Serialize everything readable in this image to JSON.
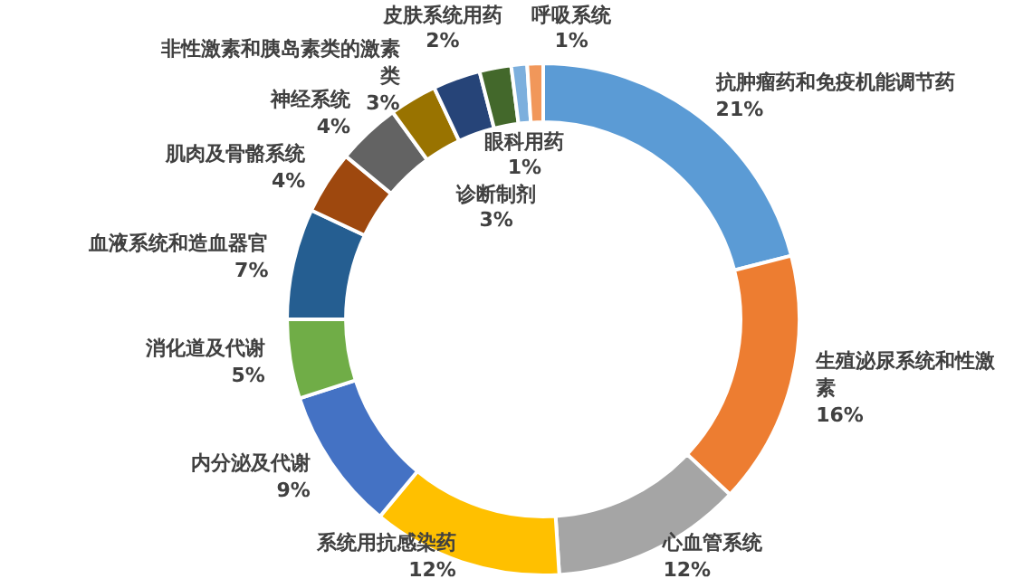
{
  "chart_data": {
    "type": "donut",
    "categories": [
      "抗肿瘤药和免疫机能调节药",
      "生殖泌尿系统和性激素",
      "心血管系统",
      "系统用抗感染药",
      "内分泌及代谢",
      "消化道及代谢",
      "血液系统和造血器官",
      "肌肉及骨骼系统",
      "神经系统",
      "非性激素和胰岛素类的激素类",
      "诊断制剂",
      "皮肤系统用药",
      "眼科用药",
      "呼吸系统"
    ],
    "values": [
      21,
      16,
      12,
      12,
      9,
      5,
      7,
      4,
      4,
      3,
      3,
      2,
      1,
      1
    ],
    "value_labels": [
      "21%",
      "16%",
      "12%",
      "12%",
      "9%",
      "5%",
      "7%",
      "4%",
      "4%",
      "3%",
      "3%",
      "2%",
      "1%",
      "1%"
    ],
    "colors": [
      "#5b9bd5",
      "#ed7d31",
      "#a5a5a5",
      "#ffc000",
      "#4472c4",
      "#70ad47",
      "#255e91",
      "#9e480e",
      "#636363",
      "#997300",
      "#264478",
      "#43682b",
      "#7cafdd",
      "#f1975a"
    ],
    "legend": false
  }
}
